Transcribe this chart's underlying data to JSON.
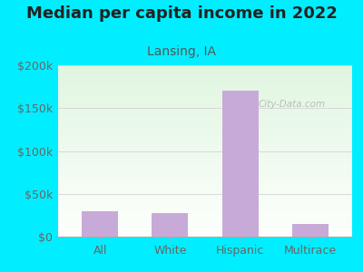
{
  "title": "Median per capita income in 2022",
  "subtitle": "Lansing, IA",
  "categories": [
    "All",
    "White",
    "Hispanic",
    "Multirace"
  ],
  "values": [
    30000,
    28000,
    170000,
    15000
  ],
  "bar_color": "#c8aad8",
  "ylim": [
    0,
    200000
  ],
  "yticks": [
    0,
    50000,
    100000,
    150000,
    200000
  ],
  "bg_outer": "#00eeff",
  "title_fontsize": 13,
  "subtitle_fontsize": 10,
  "tick_fontsize": 9,
  "title_color": "#222222",
  "subtitle_color": "#555555",
  "tick_color": "#666666",
  "watermark": "City-Data.com"
}
